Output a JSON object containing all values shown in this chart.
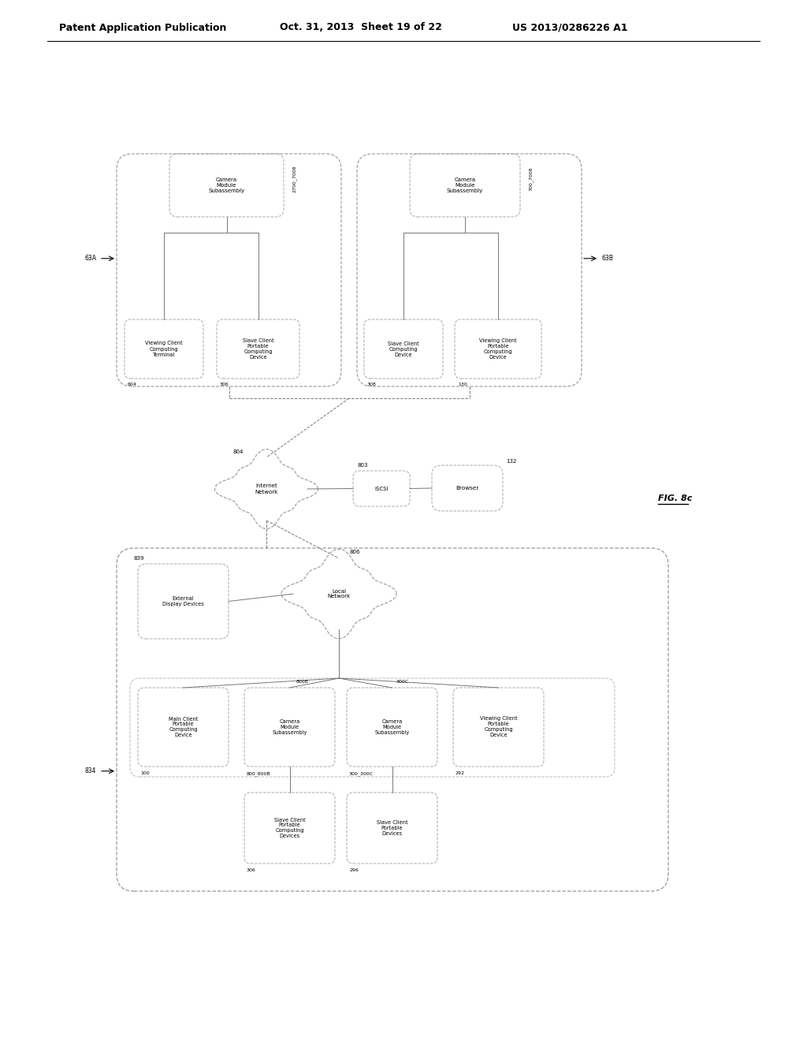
{
  "header_left": "Patent Application Publication",
  "header_middle": "Oct. 31, 2013  Sheet 19 of 22",
  "header_right": "US 2013/0286226 A1",
  "fig_label": "FIG. 8c",
  "background": "#ffffff",
  "lc": "#777777",
  "tc": "#000000"
}
